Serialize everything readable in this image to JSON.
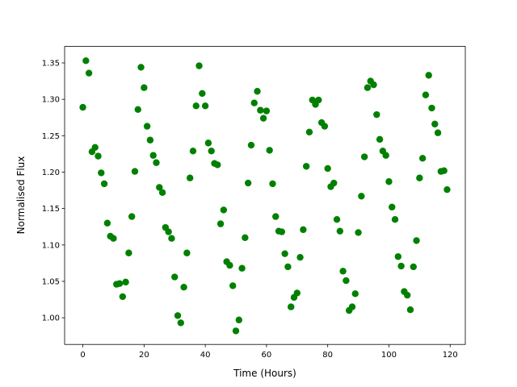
{
  "chart_data": {
    "type": "scatter",
    "xlabel": "Time (Hours)",
    "ylabel": "Normalised Flux",
    "color": "#008000",
    "x": [
      0,
      1,
      2,
      3,
      4,
      5,
      6,
      7,
      8,
      9,
      10,
      11,
      12,
      13,
      14,
      15,
      16,
      17,
      18,
      19,
      20,
      21,
      22,
      23,
      24,
      25,
      26,
      27,
      28,
      29,
      30,
      31,
      32,
      33,
      34,
      35,
      36,
      37,
      38,
      39,
      40,
      41,
      42,
      43,
      44,
      45,
      46,
      47,
      48,
      49,
      50,
      51,
      52,
      53,
      54,
      55,
      56,
      57,
      58,
      59,
      60,
      61,
      62,
      63,
      64,
      65,
      66,
      67,
      68,
      69,
      70,
      71,
      72,
      73,
      74,
      75,
      76,
      77,
      78,
      79,
      80,
      81,
      82,
      83,
      84,
      85,
      86,
      87,
      88,
      89,
      90,
      91,
      92,
      93,
      94,
      95,
      96,
      97,
      98,
      99,
      100,
      101,
      102,
      103,
      104,
      105,
      106,
      107,
      108,
      109,
      110,
      111,
      112,
      113,
      114,
      115,
      116,
      117,
      118,
      119
    ],
    "values": [
      1.289,
      1.353,
      1.336,
      1.228,
      1.234,
      1.222,
      1.199,
      1.184,
      1.13,
      1.112,
      1.109,
      1.046,
      1.047,
      1.029,
      1.049,
      1.089,
      1.139,
      1.201,
      1.286,
      1.344,
      1.316,
      1.263,
      1.244,
      1.223,
      1.213,
      1.179,
      1.172,
      1.124,
      1.118,
      1.109,
      1.056,
      1.003,
      0.993,
      1.042,
      1.089,
      1.192,
      1.229,
      1.291,
      1.346,
      1.308,
      1.291,
      1.24,
      1.229,
      1.212,
      1.21,
      1.129,
      1.148,
      1.077,
      1.072,
      1.044,
      0.982,
      0.997,
      1.068,
      1.11,
      1.185,
      1.237,
      1.295,
      1.311,
      1.285,
      1.274,
      1.284,
      1.23,
      1.184,
      1.139,
      1.119,
      1.118,
      1.088,
      1.07,
      1.015,
      1.028,
      1.034,
      1.083,
      1.121,
      1.208,
      1.255,
      1.299,
      1.293,
      1.299,
      1.268,
      1.263,
      1.205,
      1.18,
      1.185,
      1.135,
      1.119,
      1.064,
      1.051,
      1.01,
      1.015,
      1.033,
      1.117,
      1.167,
      1.221,
      1.316,
      1.325,
      1.32,
      1.279,
      1.245,
      1.229,
      1.223,
      1.187,
      1.152,
      1.135,
      1.084,
      1.071,
      1.036,
      1.031,
      1.011,
      1.07,
      1.106,
      1.192,
      1.219,
      1.306,
      1.333,
      1.288,
      1.266,
      1.254,
      1.201,
      1.202,
      1.176
    ],
    "xlim": [
      -5.95,
      124.95
    ],
    "xticks": [
      0,
      20,
      40,
      60,
      80,
      100,
      120
    ],
    "ylim": [
      0.9634,
      1.3726
    ],
    "yticks": [
      {
        "value": 1.0,
        "label": "1.00"
      },
      {
        "value": 1.05,
        "label": "1.05"
      },
      {
        "value": 1.1,
        "label": "1.10"
      },
      {
        "value": 1.15,
        "label": "1.15"
      },
      {
        "value": 1.2,
        "label": "1.20"
      },
      {
        "value": 1.25,
        "label": "1.25"
      },
      {
        "value": 1.3,
        "label": "1.30"
      },
      {
        "value": 1.35,
        "label": "1.35"
      }
    ]
  }
}
